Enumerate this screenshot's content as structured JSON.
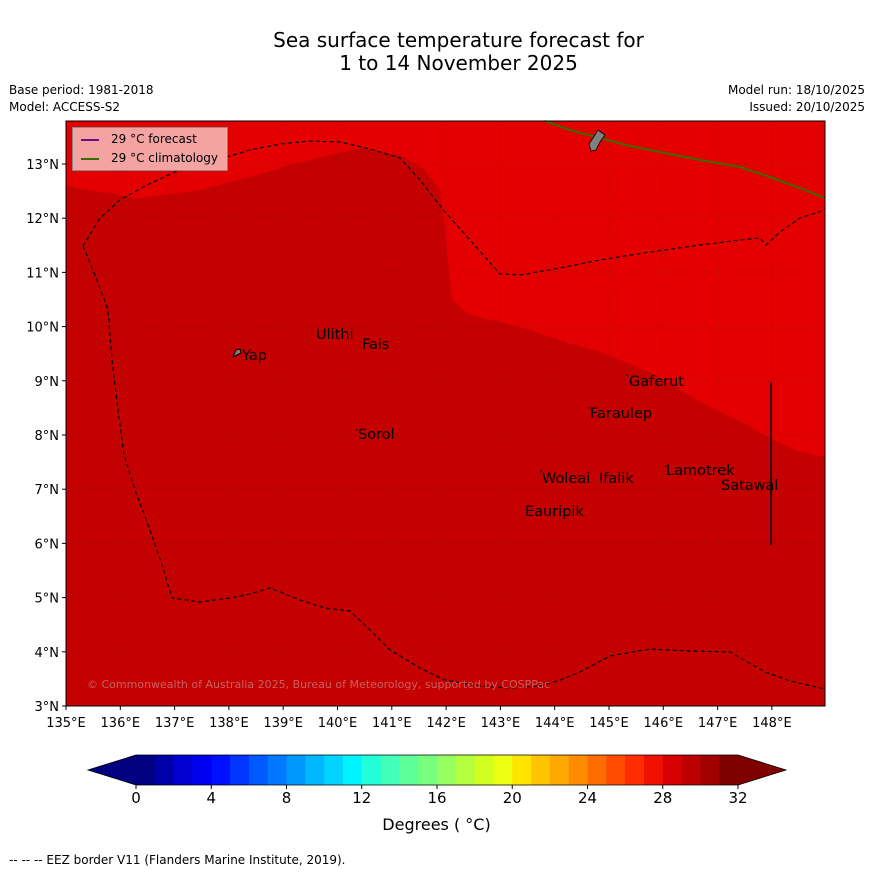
{
  "title_line1": "Sea surface temperature forecast for",
  "title_line2": "1 to 14 November 2025",
  "meta_left": {
    "base_period": "Base period: 1981-2018",
    "model": "Model: ACCESS-S2"
  },
  "meta_right": {
    "model_run": "Model run: 18/10/2025",
    "issued": "Issued: 20/10/2025"
  },
  "legend": {
    "forecast": "29 °C  forecast",
    "climatology": "29 °C  climatology",
    "forecast_color": "#6b0d8a",
    "climatology_color": "#3a6b00"
  },
  "longitude_ticks": [
    "135°E",
    "136°E",
    "137°E",
    "138°E",
    "139°E",
    "140°E",
    "141°E",
    "142°E",
    "143°E",
    "144°E",
    "145°E",
    "146°E",
    "147°E",
    "148°E"
  ],
  "latitude_ticks": [
    "13°N",
    "12°N",
    "11°N",
    "10°N",
    "9°N",
    "8°N",
    "7°N",
    "6°N",
    "5°N",
    "4°N",
    "3°N"
  ],
  "places": [
    "Yap",
    "Ulithi",
    "Fais",
    "Gaferut",
    "Faraulep",
    "Sorol",
    "Woleai",
    "Ifalik",
    "Lamotrek",
    "Satawal",
    "Eauripik"
  ],
  "copyright": "© Commonwealth of Australia 2025, Bureau of Meteorology, supported by COSPPac",
  "colorbar": {
    "title": "Degrees ( °C)",
    "tick_labels": [
      "0",
      "4",
      "8",
      "12",
      "16",
      "20",
      "24",
      "28",
      "32"
    ],
    "colors": [
      "#000080",
      "#0000a8",
      "#0000d0",
      "#0000f0",
      "#0010ff",
      "#0034ff",
      "#0058ff",
      "#0078ff",
      "#0098ff",
      "#00b8ff",
      "#00d4ff",
      "#00f4ff",
      "#20ffd8",
      "#40ffb8",
      "#5cff98",
      "#78ff80",
      "#98ff60",
      "#b4ff40",
      "#d0ff20",
      "#ecff10",
      "#ffe400",
      "#ffc400",
      "#ffa800",
      "#ff8c00",
      "#ff6c00",
      "#ff4c00",
      "#ff2c00",
      "#f01000",
      "#d80000",
      "#bc0000",
      "#a00000",
      "#800000"
    ],
    "under_color": "#000080",
    "over_color": "#800000"
  },
  "map_colors": {
    "dark_region": "#c40000",
    "light_region": "#e40000",
    "land": "#808080"
  },
  "footnote": "--  --  -- EEZ border V11 (Flanders Marine Institute, 2019)."
}
